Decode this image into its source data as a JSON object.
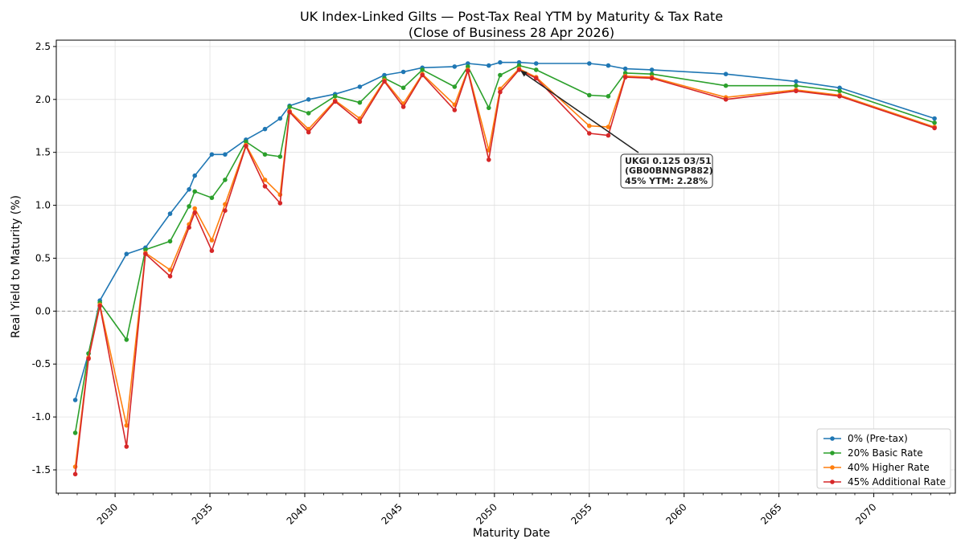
{
  "chart_data": {
    "type": "line",
    "title_line1": "UK Index-Linked Gilts — Post-Tax Real YTM by Maturity & Tax Rate",
    "title_line2": "(Close of Business 28 Apr 2026)",
    "xlabel": "Maturity Date",
    "ylabel": "Real Yield to Maturity (%)",
    "xlim": [
      2026.9,
      2074.3
    ],
    "ylim": [
      -1.72,
      2.56
    ],
    "xticks": [
      2030,
      2035,
      2040,
      2045,
      2050,
      2055,
      2060,
      2065,
      2070
    ],
    "yticks": [
      "-1.5",
      "-1.0",
      "-0.5",
      "0.0",
      "0.5",
      "1.0",
      "1.5",
      "2.0",
      "2.5"
    ],
    "ytick_values": [
      -1.5,
      -1.0,
      -0.5,
      0.0,
      0.5,
      1.0,
      1.5,
      2.0,
      2.5
    ],
    "grid": true,
    "zero_line": true,
    "legend_position": "lower right",
    "x": [
      2027.9,
      2028.6,
      2029.2,
      2030.6,
      2031.6,
      2032.9,
      2033.9,
      2034.2,
      2035.1,
      2035.8,
      2036.9,
      2037.9,
      2038.7,
      2039.2,
      2040.2,
      2041.6,
      2042.9,
      2044.2,
      2045.2,
      2046.2,
      2047.9,
      2048.6,
      2049.7,
      2050.3,
      2051.3,
      2052.2,
      2055.0,
      2056.0,
      2056.9,
      2058.3,
      2062.2,
      2065.9,
      2068.2,
      2073.2
    ],
    "series": [
      {
        "name": "0% (Pre-tax)",
        "color": "#1f77b4",
        "values": [
          -0.84,
          -0.4,
          0.1,
          0.54,
          0.6,
          0.92,
          1.15,
          1.28,
          1.48,
          1.48,
          1.62,
          1.72,
          1.82,
          1.94,
          2.0,
          2.05,
          2.12,
          2.23,
          2.26,
          2.3,
          2.31,
          2.34,
          2.32,
          2.35,
          2.35,
          2.34,
          2.34,
          2.32,
          2.29,
          2.28,
          2.24,
          2.17,
          2.11,
          1.82
        ]
      },
      {
        "name": "20% Basic Rate",
        "color": "#2ca02c",
        "values": [
          -1.15,
          -0.4,
          0.08,
          -0.27,
          0.58,
          0.66,
          0.99,
          1.13,
          1.07,
          1.24,
          1.6,
          1.48,
          1.46,
          1.93,
          1.87,
          2.03,
          1.97,
          2.2,
          2.11,
          2.28,
          2.12,
          2.31,
          1.92,
          2.23,
          2.32,
          2.28,
          2.04,
          2.03,
          2.25,
          2.24,
          2.13,
          2.13,
          2.08,
          1.78
        ]
      },
      {
        "name": "40% Higher Rate",
        "color": "#ff7f0e",
        "values": [
          -1.47,
          -0.44,
          0.06,
          -1.08,
          0.55,
          0.39,
          0.82,
          0.97,
          0.67,
          1.01,
          1.57,
          1.24,
          1.1,
          1.89,
          1.72,
          1.99,
          1.82,
          2.18,
          1.96,
          2.24,
          1.95,
          2.28,
          1.52,
          2.1,
          2.29,
          2.21,
          1.75,
          1.74,
          2.22,
          2.21,
          2.02,
          2.09,
          2.04,
          1.74
        ]
      },
      {
        "name": "45% Additional Rate",
        "color": "#d62728",
        "values": [
          -1.54,
          -0.45,
          0.05,
          -1.28,
          0.54,
          0.33,
          0.79,
          0.93,
          0.57,
          0.95,
          1.56,
          1.18,
          1.02,
          1.88,
          1.69,
          1.98,
          1.79,
          2.17,
          1.93,
          2.23,
          1.9,
          2.27,
          1.43,
          2.07,
          2.28,
          2.2,
          1.68,
          1.66,
          2.21,
          2.2,
          2.0,
          2.08,
          2.03,
          1.73
        ]
      }
    ],
    "annotation": {
      "lines": [
        "UKGI 0.125 03/51",
        "(GB00BNNGP882)",
        "45% YTM: 2.28%"
      ],
      "target_x": 2051.3,
      "target_y": 2.28
    }
  }
}
